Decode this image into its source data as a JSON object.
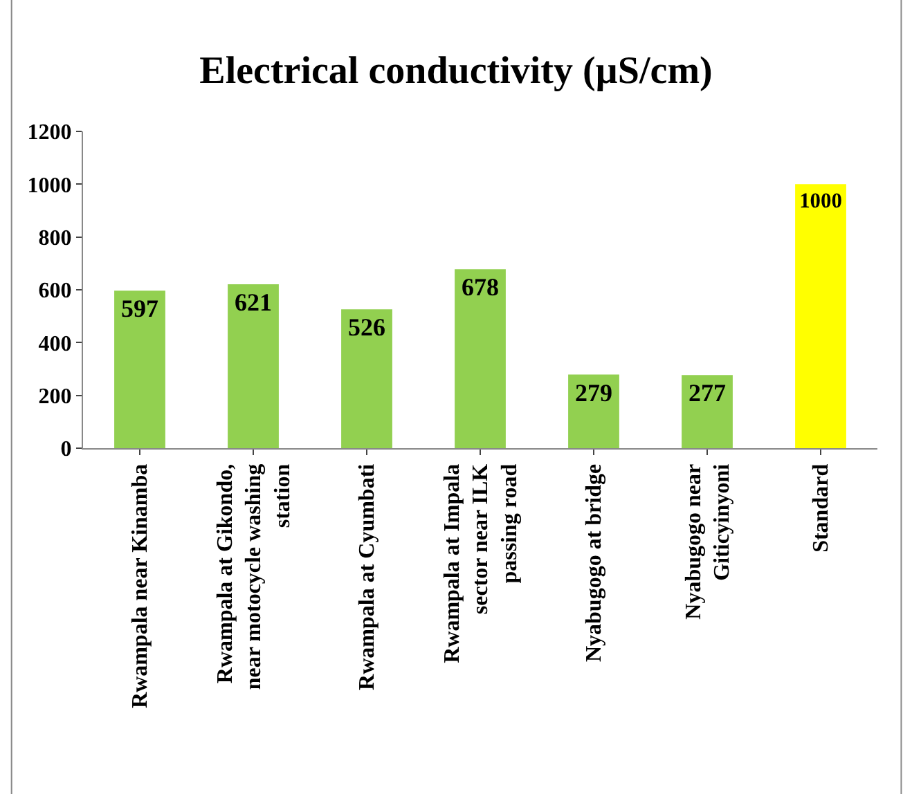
{
  "chart_data": {
    "type": "bar",
    "title": "Electrical conductivity (µS/cm)",
    "categories": [
      "Rwampala near Kinamba",
      "Rwampala at Gikondo, near motocycle washing station",
      "Rwampala at Cyumbati",
      "Rwampala at Impala sector near ILK passing road",
      "Nyabugogo at bridge",
      "Nyabugogo near Giticyinyoni",
      "Standard"
    ],
    "values": [
      597,
      621,
      526,
      678,
      279,
      277,
      1000
    ],
    "colors": [
      "#92d050",
      "#92d050",
      "#92d050",
      "#92d050",
      "#92d050",
      "#92d050",
      "#ffff00"
    ],
    "ylim": [
      0,
      1200
    ],
    "yticks": [
      0,
      200,
      400,
      600,
      800,
      1000,
      1200
    ],
    "data_labels": true
  }
}
